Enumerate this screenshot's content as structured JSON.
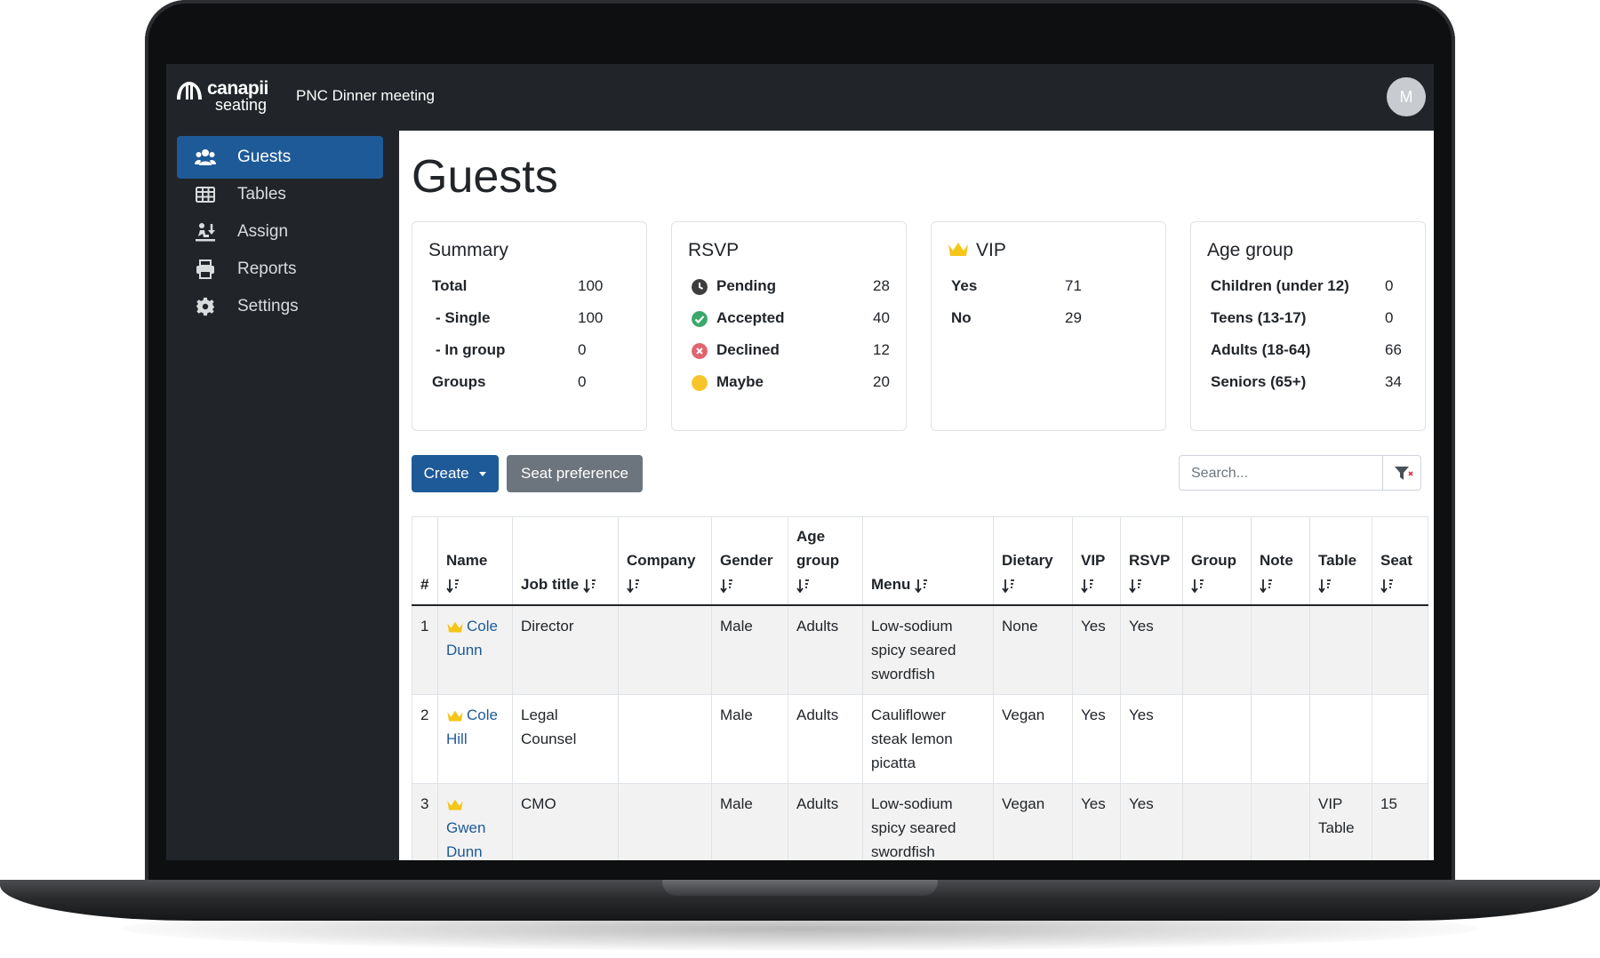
{
  "app": {
    "logo_line1": "canapii",
    "logo_line2": "seating",
    "event_title": "PNC Dinner meeting",
    "avatar_initial": "M"
  },
  "sidebar": {
    "items": [
      {
        "label": "Guests",
        "icon": "users-icon",
        "active": true
      },
      {
        "label": "Tables",
        "icon": "table-grid-icon",
        "active": false
      },
      {
        "label": "Assign",
        "icon": "assign-icon",
        "active": false
      },
      {
        "label": "Reports",
        "icon": "printer-icon",
        "active": false
      },
      {
        "label": "Settings",
        "icon": "gear-icon",
        "active": false
      }
    ],
    "logout_icon": "sign-out-icon"
  },
  "page": {
    "title": "Guests"
  },
  "cards": {
    "summary": {
      "title": "Summary",
      "rows": [
        {
          "label": "Total",
          "value": "100"
        },
        {
          "label": "- Single",
          "value": "100"
        },
        {
          "label": "- In group",
          "value": "0"
        },
        {
          "label": "Groups",
          "value": "0"
        }
      ]
    },
    "rsvp": {
      "title": "RSVP",
      "rows": [
        {
          "label": "Pending",
          "value": "28",
          "color": "#3d3d3d"
        },
        {
          "label": "Accepted",
          "value": "40",
          "color": "#3aa86b"
        },
        {
          "label": "Declined",
          "value": "12",
          "color": "#dc3545"
        },
        {
          "label": "Maybe",
          "value": "20",
          "color": "#f7c52a"
        }
      ]
    },
    "vip": {
      "title": "VIP",
      "rows": [
        {
          "label": "Yes",
          "value": "71"
        },
        {
          "label": "No",
          "value": "29"
        }
      ]
    },
    "age_group": {
      "title": "Age group",
      "rows": [
        {
          "label": "Children (under 12)",
          "value": "0"
        },
        {
          "label": "Teens (13-17)",
          "value": "0"
        },
        {
          "label": "Adults (18-64)",
          "value": "66"
        },
        {
          "label": "Seniors (65+)",
          "value": "34"
        }
      ]
    }
  },
  "toolbar": {
    "create_label": "Create",
    "seat_preference_label": "Seat preference",
    "search_placeholder": "Search..."
  },
  "table": {
    "headers": [
      "#",
      "Name",
      "Job title",
      "Company",
      "Gender",
      "Age group",
      "Menu",
      "Dietary",
      "VIP",
      "RSVP",
      "Group",
      "Note",
      "Table",
      "Seat"
    ],
    "rows": [
      {
        "num": "1",
        "name": "Cole Dunn",
        "job": "Director",
        "company": "",
        "gender": "Male",
        "age": "Adults",
        "menu": "Low-sodium spicy seared swordfish",
        "dietary": "None",
        "vip": "Yes",
        "rsvp": "Yes",
        "group": "",
        "note": "",
        "table": "",
        "seat": ""
      },
      {
        "num": "2",
        "name": "Cole Hill",
        "job": "Legal Counsel",
        "company": "",
        "gender": "Male",
        "age": "Adults",
        "menu": "Cauliflower steak lemon picatta",
        "dietary": "Vegan",
        "vip": "Yes",
        "rsvp": "Yes",
        "group": "",
        "note": "",
        "table": "",
        "seat": ""
      },
      {
        "num": "3",
        "name": "Gwen Dunn",
        "job": "CMO",
        "company": "",
        "gender": "Male",
        "age": "Adults",
        "menu": "Low-sodium spicy seared swordfish",
        "dietary": "Vegan",
        "vip": "Yes",
        "rsvp": "Yes",
        "group": "",
        "note": "",
        "table": "VIP Table",
        "seat": "15"
      }
    ]
  },
  "colors": {
    "primary": "#1e5a97",
    "secondary": "#6c757d",
    "dark": "#212529",
    "crown": "#f5c518"
  }
}
